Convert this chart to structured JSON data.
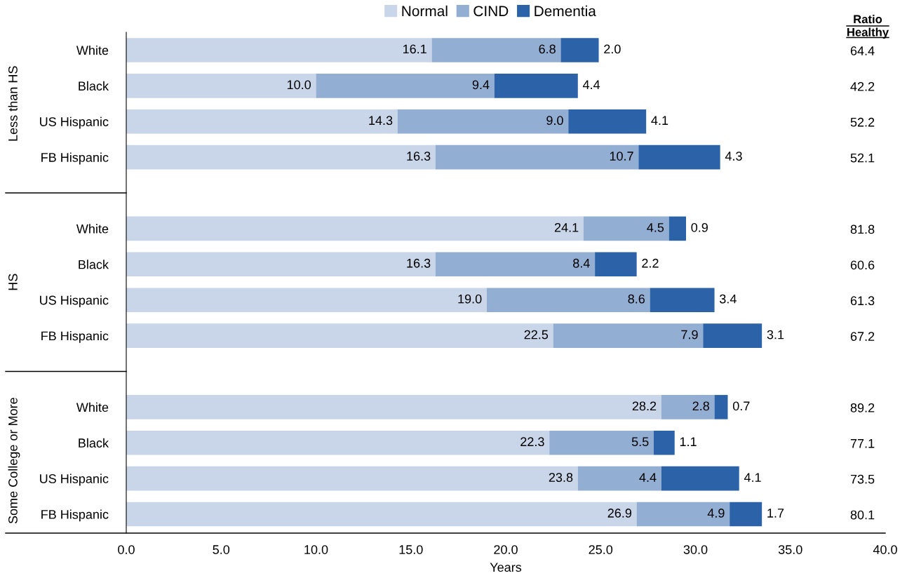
{
  "chart_data": {
    "type": "bar",
    "orientation": "horizontal",
    "stacked": true,
    "categories": [
      "White",
      "Black",
      "US Hispanic",
      "FB Hispanic",
      null,
      "White",
      "Black",
      "US Hispanic",
      "FB Hispanic",
      null,
      "White",
      "Black",
      "US Hispanic",
      "FB Hispanic"
    ],
    "series": [
      {
        "name": "Normal",
        "color": "#c9d5e8",
        "values": [
          16.1,
          10.0,
          14.3,
          16.3,
          null,
          24.1,
          16.3,
          19.0,
          22.5,
          null,
          28.2,
          22.3,
          23.8,
          26.9
        ],
        "value_labels": [
          "16.1",
          "10.0",
          "14.3",
          "16.3",
          null,
          "24.1",
          "16.3",
          "19.0",
          "22.5",
          null,
          "28.2",
          "22.3",
          "23.8",
          "26.9"
        ]
      },
      {
        "name": "CIND",
        "color": "#93aed3",
        "values": [
          6.8,
          9.4,
          9.0,
          10.7,
          null,
          4.5,
          8.4,
          8.6,
          7.9,
          null,
          2.8,
          5.5,
          4.4,
          4.9
        ],
        "value_labels": [
          "6.8",
          "9.4",
          "9.0",
          "10.7",
          null,
          "4.5",
          "8.4",
          "8.6",
          "7.9",
          null,
          "2.8",
          "5.5",
          "4.4",
          "4.9"
        ]
      },
      {
        "name": "Dementia",
        "color": "#2b62a8",
        "values": [
          2.0,
          4.4,
          4.1,
          4.3,
          null,
          0.9,
          2.2,
          3.4,
          3.1,
          null,
          0.7,
          1.1,
          4.1,
          1.7
        ],
        "value_labels": [
          "2.0",
          "4.4",
          "4.1",
          "4.3",
          null,
          "0.9",
          "2.2",
          "3.4",
          "3.1",
          null,
          "0.7",
          "1.1",
          "4.1",
          "1.7"
        ]
      }
    ],
    "xlabel": "Years",
    "xlim": [
      0,
      40
    ],
    "xticks": [
      {
        "value": 0,
        "label": "0.0"
      },
      {
        "value": 5,
        "label": "5.0"
      },
      {
        "value": 10,
        "label": "10.0"
      },
      {
        "value": 15,
        "label": "15.0"
      },
      {
        "value": 20,
        "label": "20.0"
      },
      {
        "value": 25,
        "label": "25.0"
      },
      {
        "value": 30,
        "label": "30.0"
      },
      {
        "value": 35,
        "label": "35.0"
      },
      {
        "value": 40,
        "label": "40.0"
      }
    ],
    "legend": "top",
    "grid": false,
    "annotations": [
      "Ratio Healthy",
      "64.4",
      "42.2",
      "52.2",
      "52.1",
      "81.8",
      "60.6",
      "61.3",
      "67.2",
      "89.2",
      "77.1",
      "73.5",
      "80.1",
      "Less than HS",
      "HS",
      "Some College or More"
    ]
  }
}
